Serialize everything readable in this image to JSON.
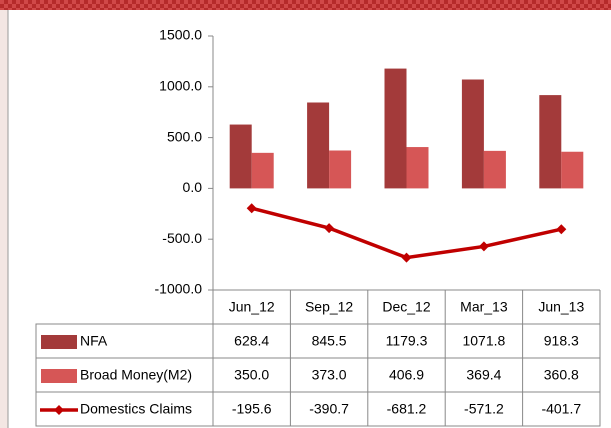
{
  "chart_data": {
    "type": "bar",
    "categories": [
      "Jun_12",
      "Sep_12",
      "Dec_12",
      "Mar_13",
      "Jun_13"
    ],
    "series": [
      {
        "name": "NFA",
        "color": "#a33a3a",
        "values": [
          628.4,
          845.5,
          1179.3,
          1071.8,
          918.3
        ]
      },
      {
        "name": "Broad Money(M2)",
        "color": "#d65656",
        "values": [
          350.0,
          373.0,
          406.9,
          369.4,
          360.8
        ],
        "value_labels": [
          "350.0",
          "373.0",
          "406.9",
          "369.4",
          "360.8"
        ]
      },
      {
        "name": "Domestics Claims",
        "type": "line",
        "color": "#c00000",
        "values": [
          -195.6,
          -390.7,
          -681.2,
          -571.2,
          -401.7
        ]
      }
    ],
    "ylim": [
      -1000,
      1500
    ],
    "yticks": [
      {
        "value": -1000,
        "label": "-1000.0"
      },
      {
        "value": -500,
        "label": "-500.0"
      },
      {
        "value": 0,
        "label": "0.0"
      },
      {
        "value": 500,
        "label": "500.0"
      },
      {
        "value": 1000,
        "label": "1000.0"
      },
      {
        "value": 1500,
        "label": "1500.0"
      }
    ],
    "grid": false
  }
}
